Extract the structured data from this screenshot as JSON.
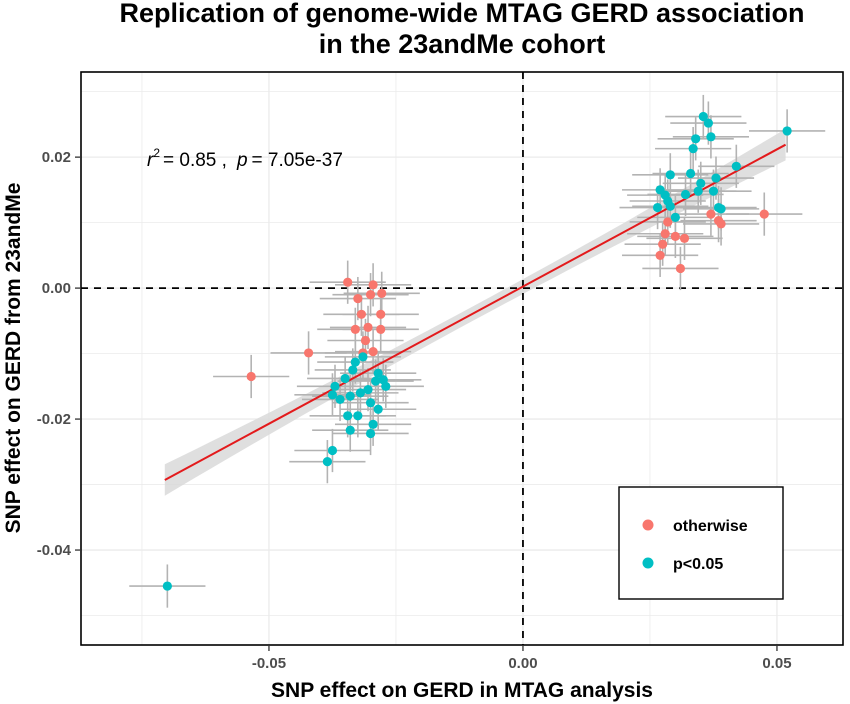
{
  "chart_data": {
    "type": "scatter",
    "title_line1": "Replication of genome-wide MTAG GERD association",
    "title_line2": "in the 23andMe cohort",
    "xlabel": "SNP effect on GERD in MTAG analysis",
    "ylabel": "SNP effect on GERD from 23andMe",
    "xlim": [
      -0.087,
      0.063
    ],
    "ylim": [
      -0.0545,
      0.033
    ],
    "x_ticks": [
      -0.05,
      0.0,
      0.05
    ],
    "x_tick_labels": [
      "-0.05",
      "0.00",
      "0.05"
    ],
    "y_ticks": [
      0.02,
      0.0,
      -0.02,
      -0.04
    ],
    "y_tick_labels": [
      "0.02",
      "0.00",
      "-0.02",
      "-0.04"
    ],
    "grid": true,
    "reference_lines": {
      "x": 0,
      "y": 0,
      "style": "dashed"
    },
    "annotation": {
      "r2_symbol": "r",
      "r2_exp": "2",
      "r2_value": "= 0.85 ,",
      "p_symbol": "p",
      "p_value": "= 7.05e-37"
    },
    "fit_line": {
      "x": [
        -0.0705,
        0.0517
      ],
      "y": [
        -0.0293,
        0.0219
      ],
      "color": "#e31a1c"
    },
    "legend": {
      "position": "bottom-right",
      "entries": [
        "otherwise",
        "p<0.05"
      ]
    },
    "colors": {
      "otherwise": "#f8766d",
      "p<0.05": "#00bfc4",
      "errorbar": "#b3b3b3",
      "band": "#d9d9d9"
    },
    "series": [
      {
        "name": "otherwise",
        "points": [
          [
            -0.0535,
            -0.0135
          ],
          [
            -0.0422,
            -0.0099
          ],
          [
            -0.0345,
            0.0009
          ],
          [
            -0.0325,
            -0.0016
          ],
          [
            -0.0295,
            0.0005
          ],
          [
            -0.0278,
            -0.0008
          ],
          [
            -0.03,
            -0.001
          ],
          [
            -0.0318,
            -0.004
          ],
          [
            -0.028,
            -0.004
          ],
          [
            -0.033,
            -0.0063
          ],
          [
            -0.0305,
            -0.006
          ],
          [
            -0.028,
            -0.0063
          ],
          [
            -0.031,
            -0.008
          ],
          [
            -0.0295,
            -0.0097
          ],
          [
            -0.0315,
            -0.0099
          ],
          [
            0.027,
            0.005
          ],
          [
            0.0275,
            0.0067
          ],
          [
            0.028,
            0.0083
          ],
          [
            0.0285,
            0.0101
          ],
          [
            0.03,
            0.0079
          ],
          [
            0.031,
            0.003
          ],
          [
            0.0318,
            0.0076
          ],
          [
            0.037,
            0.0113
          ],
          [
            0.0385,
            0.0103
          ],
          [
            0.039,
            0.0098
          ],
          [
            0.0475,
            0.0113
          ]
        ]
      },
      {
        "name": "p<0.05",
        "points": [
          [
            -0.07,
            -0.0455
          ],
          [
            -0.0385,
            -0.0265
          ],
          [
            -0.0375,
            -0.0248
          ],
          [
            -0.034,
            -0.0217
          ],
          [
            -0.03,
            -0.0222
          ],
          [
            -0.0295,
            -0.0208
          ],
          [
            -0.0325,
            -0.0195
          ],
          [
            -0.0345,
            -0.0195
          ],
          [
            -0.036,
            -0.017
          ],
          [
            -0.0375,
            -0.0163
          ],
          [
            -0.037,
            -0.015
          ],
          [
            -0.035,
            -0.0138
          ],
          [
            -0.0335,
            -0.0125
          ],
          [
            -0.033,
            -0.0113
          ],
          [
            -0.0315,
            -0.0105
          ],
          [
            -0.034,
            -0.0165
          ],
          [
            -0.032,
            -0.016
          ],
          [
            -0.0305,
            -0.0155
          ],
          [
            -0.029,
            -0.0142
          ],
          [
            -0.0285,
            -0.013
          ],
          [
            -0.0275,
            -0.014
          ],
          [
            -0.027,
            -0.015
          ],
          [
            -0.03,
            -0.0175
          ],
          [
            -0.0285,
            -0.0185
          ],
          [
            0.0265,
            0.0123
          ],
          [
            0.027,
            0.015
          ],
          [
            0.028,
            0.0142
          ],
          [
            0.0285,
            0.0133
          ],
          [
            0.03,
            0.0108
          ],
          [
            0.029,
            0.0173
          ],
          [
            0.032,
            0.0143
          ],
          [
            0.033,
            0.0175
          ],
          [
            0.0335,
            0.0213
          ],
          [
            0.034,
            0.0228
          ],
          [
            0.0345,
            0.0148
          ],
          [
            0.035,
            0.016
          ],
          [
            0.0355,
            0.0262
          ],
          [
            0.0365,
            0.0252
          ],
          [
            0.037,
            0.0231
          ],
          [
            0.0375,
            0.0148
          ],
          [
            0.038,
            0.0168
          ],
          [
            0.0385,
            0.0123
          ],
          [
            0.039,
            0.0121
          ],
          [
            0.042,
            0.0186
          ],
          [
            0.052,
            0.024
          ],
          [
            0.029,
            0.0125
          ]
        ]
      }
    ]
  }
}
